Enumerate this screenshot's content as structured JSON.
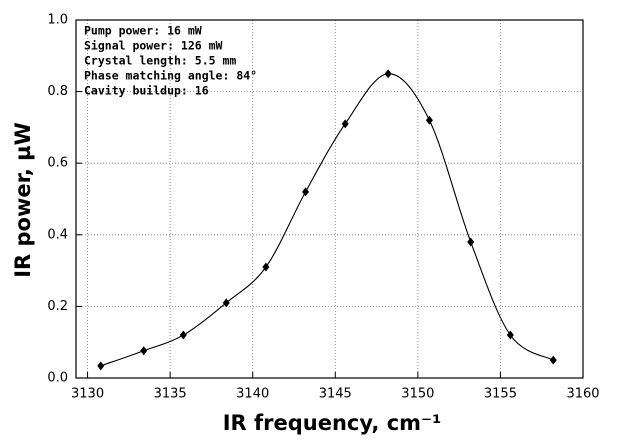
{
  "chart_data": {
    "type": "line",
    "xlabel": "IR frequency, cm⁻¹",
    "ylabel": "IR power, µW",
    "annotations": [
      "Pump power: 16 mW",
      "Signal power: 126 mW",
      "Crystal length: 5.5 mm",
      "Phase matching angle: 84°",
      "Cavity buildup: 16"
    ],
    "x": [
      3130.8,
      3133.4,
      3135.8,
      3138.4,
      3140.8,
      3143.2,
      3145.6,
      3148.2,
      3150.7,
      3153.2,
      3155.6,
      3158.2
    ],
    "series": [
      {
        "color": "#000000",
        "values": [
          0.034,
          0.076,
          0.12,
          0.21,
          0.31,
          0.52,
          0.71,
          0.85,
          0.72,
          0.38,
          0.12,
          0.05
        ]
      }
    ],
    "xlim": [
      3129.3,
      3160
    ],
    "xticks": [
      3130,
      3135,
      3140,
      3145,
      3150,
      3155,
      3160
    ],
    "ylim": [
      0,
      1
    ],
    "yticks": [
      {
        "value": 0,
        "label": "0.0"
      },
      0.2,
      0.4,
      0.6,
      0.8,
      {
        "value": 1,
        "label": "1.0"
      }
    ],
    "grid": true
  }
}
